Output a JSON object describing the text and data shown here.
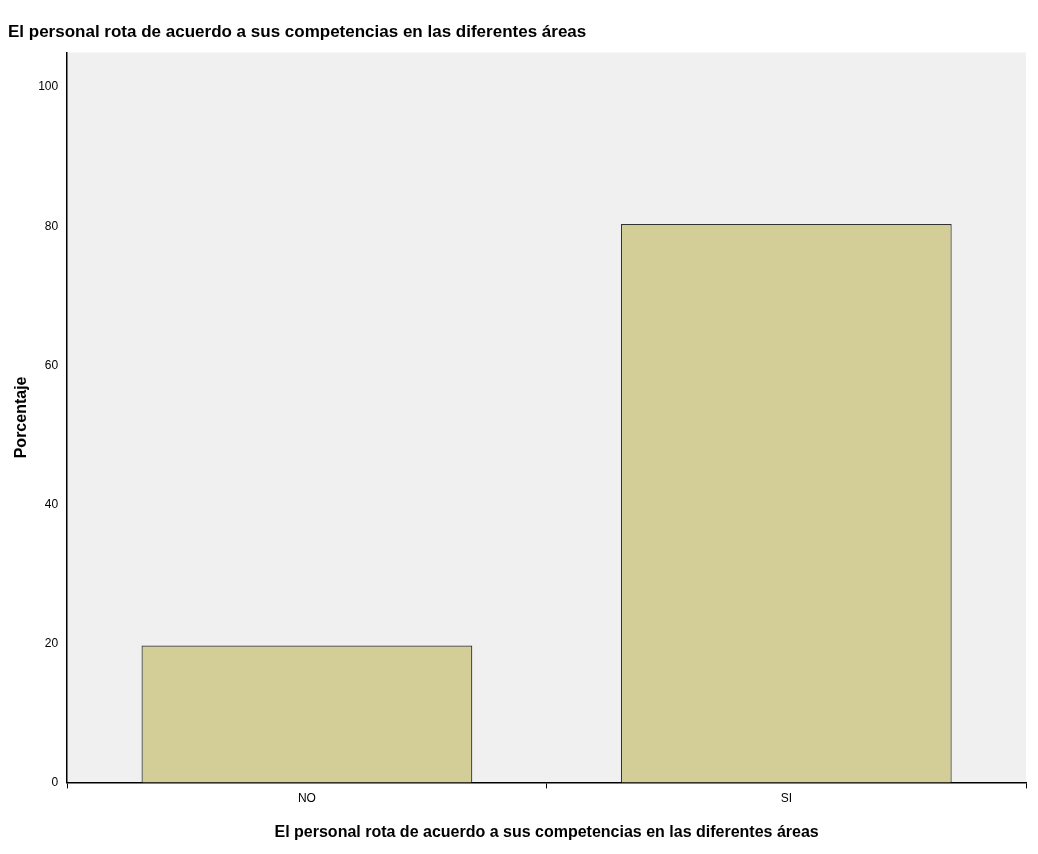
{
  "chart_data": {
    "type": "bar",
    "title": "El personal rota de acuerdo a sus competencias en las diferentes áreas",
    "xlabel": "El personal rota de acuerdo a sus competencias en las diferentes áreas",
    "ylabel": "Porcentaje",
    "categories": [
      "NO",
      "SI"
    ],
    "values": [
      19.7,
      80.3
    ],
    "color": "#d3ce97",
    "ylim": [
      0,
      105
    ],
    "yticks": [
      0,
      20,
      40,
      60,
      80,
      100
    ],
    "grid": false,
    "legend": false
  }
}
